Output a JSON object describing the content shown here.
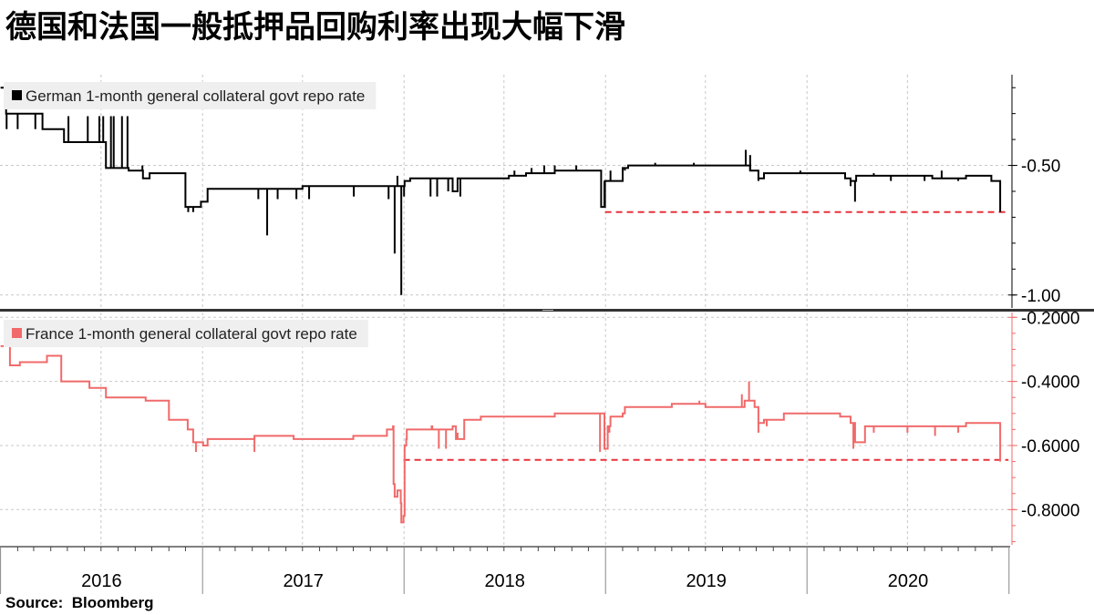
{
  "title": "德国和法国一般抵押品回购利率出现大幅下滑",
  "source": {
    "label": "Source:",
    "name": "Bloomberg"
  },
  "colors": {
    "german": "#000000",
    "france": "#f06a6a",
    "guide": "#e8323c",
    "grid": "#c8c8c8",
    "divider": "#333333"
  },
  "chart_data": [
    {
      "type": "line",
      "legend": "German 1-month general collateral govt repo rate",
      "y_ticks": [
        -0.5,
        -1.0
      ],
      "y_tick_labels": [
        "-0.50",
        "-1.00"
      ],
      "ylim": [
        -1.05,
        -0.15
      ],
      "grid": true,
      "legend_position": "top-left",
      "series": [
        {
          "name": "German 1-month general collateral govt repo rate",
          "x": [
            "2016-01-01",
            "2016-01-08",
            "2016-01-11",
            "2016-03-10",
            "2016-03-17",
            "2016-04-20",
            "2016-04-25",
            "2016-05-03",
            "2016-06-25",
            "2016-07-05",
            "2016-07-10",
            "2016-07-20",
            "2016-08-08",
            "2016-08-20",
            "2016-09-05",
            "2016-09-15",
            "2016-09-22",
            "2016-09-27",
            "2016-10-01",
            "2016-10-15",
            "2016-11-15",
            "2016-11-20",
            "2016-12-01",
            "2016-12-29",
            "2017-01-05",
            "2017-01-10",
            "2017-02-10",
            "2017-02-20",
            "2017-03-20",
            "2017-03-25",
            "2017-04-30",
            "2017-05-10",
            "2017-06-10",
            "2017-07-01",
            "2017-08-10",
            "2017-10-01",
            "2017-12-10",
            "2017-12-20",
            "2017-12-22",
            "2018-01-02",
            "2018-01-06",
            "2018-01-12",
            "2018-01-20",
            "2018-02-20",
            "2018-03-02",
            "2018-03-30",
            "2018-04-08",
            "2018-04-30",
            "2018-06-20",
            "2018-07-10",
            "2018-07-30",
            "2018-08-10",
            "2018-08-20",
            "2018-10-01",
            "2018-11-15",
            "2018-12-10",
            "2018-12-14",
            "2018-12-20",
            "2018-12-24",
            "2018-12-27",
            "2018-12-31",
            "2019-01-03",
            "2019-01-10",
            "2019-02-01",
            "2019-02-11",
            "2019-03-01",
            "2019-03-15",
            "2019-04-01",
            "2019-05-01",
            "2019-06-01",
            "2019-06-10",
            "2019-07-01",
            "2019-08-01",
            "2019-09-01",
            "2019-09-20",
            "2019-09-28",
            "2019-10-05",
            "2019-10-15",
            "2019-11-20",
            "2019-12-01",
            "2019-12-20",
            "2020-01-02",
            "2020-02-01",
            "2020-03-01",
            "2020-03-10",
            "2020-03-20",
            "2020-03-30",
            "2020-04-15",
            "2020-05-15",
            "2020-06-15",
            "2020-07-15",
            "2020-08-15",
            "2020-09-15",
            "2020-10-15",
            "2020-11-15",
            "2020-11-30",
            "2020-12-15",
            "2020-12-16"
          ],
          "y": [
            -0.2,
            -0.2,
            -0.3,
            -0.3,
            -0.36,
            -0.36,
            -0.41,
            -0.41,
            -0.41,
            -0.41,
            -0.51,
            -0.51,
            -0.51,
            -0.52,
            -0.52,
            -0.55,
            -0.55,
            -0.53,
            -0.53,
            -0.53,
            -0.53,
            -0.53,
            -0.66,
            -0.64,
            -0.64,
            -0.59,
            -0.59,
            -0.59,
            -0.59,
            -0.59,
            -0.59,
            -0.59,
            -0.59,
            -0.58,
            -0.58,
            -0.58,
            -0.58,
            -0.58,
            -0.58,
            -0.56,
            -0.56,
            -0.55,
            -0.55,
            -0.55,
            -0.55,
            -0.6,
            -0.55,
            -0.55,
            -0.55,
            -0.54,
            -0.54,
            -0.53,
            -0.53,
            -0.52,
            -0.52,
            -0.52,
            -0.52,
            -0.52,
            -0.66,
            -0.66,
            -0.56,
            -0.56,
            -0.56,
            -0.51,
            -0.5,
            -0.5,
            -0.5,
            -0.5,
            -0.5,
            -0.5,
            -0.5,
            -0.5,
            -0.5,
            -0.5,
            -0.52,
            -0.52,
            -0.55,
            -0.53,
            -0.53,
            -0.53,
            -0.53,
            -0.53,
            -0.53,
            -0.53,
            -0.55,
            -0.56,
            -0.54,
            -0.54,
            -0.54,
            -0.54,
            -0.54,
            -0.55,
            -0.55,
            -0.54,
            -0.54,
            -0.56,
            -0.56,
            -0.68
          ]
        }
      ],
      "spikes": [
        {
          "x": "2016-01-12",
          "y": -0.36
        },
        {
          "x": "2016-02-01",
          "y": -0.36
        },
        {
          "x": "2016-03-04",
          "y": -0.36
        },
        {
          "x": "2016-04-04",
          "y": -0.36
        },
        {
          "x": "2016-05-03",
          "y": -0.31
        },
        {
          "x": "2016-06-07",
          "y": -0.31
        },
        {
          "x": "2016-06-28",
          "y": -0.31
        },
        {
          "x": "2016-07-05",
          "y": -0.31
        },
        {
          "x": "2016-07-19",
          "y": -0.31
        },
        {
          "x": "2016-07-24",
          "y": -0.31
        },
        {
          "x": "2016-08-08",
          "y": -0.31
        },
        {
          "x": "2016-08-18",
          "y": -0.31
        },
        {
          "x": "2016-09-14",
          "y": -0.5
        },
        {
          "x": "2016-12-06",
          "y": -0.68
        },
        {
          "x": "2016-12-15",
          "y": -0.68
        },
        {
          "x": "2017-04-12",
          "y": -0.63
        },
        {
          "x": "2017-04-28",
          "y": -0.77
        },
        {
          "x": "2017-05-17",
          "y": -0.63
        },
        {
          "x": "2017-06-20",
          "y": -0.63
        },
        {
          "x": "2017-07-13",
          "y": -0.63
        },
        {
          "x": "2017-10-02",
          "y": -0.62
        },
        {
          "x": "2017-12-04",
          "y": -0.63
        },
        {
          "x": "2017-12-15",
          "y": -0.84
        },
        {
          "x": "2017-12-20",
          "y": -0.54
        },
        {
          "x": "2017-12-27",
          "y": -1.0
        },
        {
          "x": "2018-01-01",
          "y": -0.62
        },
        {
          "x": "2018-02-18",
          "y": -0.62
        },
        {
          "x": "2018-03-02",
          "y": -0.62
        },
        {
          "x": "2018-03-22",
          "y": -0.6
        },
        {
          "x": "2018-04-13",
          "y": -0.62
        },
        {
          "x": "2018-07-20",
          "y": -0.52
        },
        {
          "x": "2018-08-20",
          "y": -0.51
        },
        {
          "x": "2018-09-12",
          "y": -0.5
        },
        {
          "x": "2018-10-01",
          "y": -0.5
        },
        {
          "x": "2018-11-09",
          "y": -0.5
        },
        {
          "x": "2018-12-30",
          "y": -0.56
        },
        {
          "x": "2019-01-10",
          "y": -0.52
        },
        {
          "x": "2019-02-05",
          "y": -0.52
        },
        {
          "x": "2019-04-01",
          "y": -0.49
        },
        {
          "x": "2019-06-10",
          "y": -0.49
        },
        {
          "x": "2019-09-12",
          "y": -0.44
        },
        {
          "x": "2019-09-20",
          "y": -0.46
        },
        {
          "x": "2019-10-05",
          "y": -0.56
        },
        {
          "x": "2019-12-20",
          "y": -0.52
        },
        {
          "x": "2020-03-20",
          "y": -0.58
        },
        {
          "x": "2020-03-28",
          "y": -0.64
        },
        {
          "x": "2020-05-01",
          "y": -0.53
        },
        {
          "x": "2020-06-01",
          "y": -0.56
        },
        {
          "x": "2020-08-01",
          "y": -0.56
        },
        {
          "x": "2020-09-01",
          "y": -0.52
        },
        {
          "x": "2020-10-01",
          "y": -0.56
        }
      ],
      "reference_line": {
        "y": -0.68,
        "x_start": "2018-12-31",
        "x_end": "2020-12-31",
        "style": "dashed"
      }
    },
    {
      "type": "line",
      "legend": "France 1-month general collateral govt repo rate",
      "y_ticks": [
        -0.2,
        -0.4,
        -0.6,
        -0.8
      ],
      "y_tick_labels": [
        "-0.2000",
        "-0.4000",
        "-0.6000",
        "-0.8000"
      ],
      "ylim": [
        -0.91,
        -0.185
      ],
      "grid": true,
      "legend_position": "top-left",
      "series": [
        {
          "name": "France 1-month general collateral govt repo rate",
          "x": [
            "2016-01-01",
            "2016-01-15",
            "2016-01-18",
            "2016-02-01",
            "2016-02-05",
            "2016-03-10",
            "2016-03-25",
            "2016-04-10",
            "2016-04-20",
            "2016-06-01",
            "2016-06-10",
            "2016-07-01",
            "2016-07-10",
            "2016-08-20",
            "2016-09-20",
            "2016-10-01",
            "2016-10-31",
            "2016-11-01",
            "2016-11-20",
            "2016-12-05",
            "2016-12-15",
            "2016-12-25",
            "2017-01-02",
            "2017-01-10",
            "2017-02-15",
            "2017-03-20",
            "2017-04-05",
            "2017-04-05",
            "2017-05-20",
            "2017-06-01",
            "2017-06-15",
            "2017-08-01",
            "2017-09-30",
            "2017-10-01",
            "2017-11-01",
            "2017-12-01",
            "2017-12-12",
            "2017-12-13",
            "2017-12-15",
            "2017-12-20",
            "2017-12-26",
            "2017-12-27",
            "2017-12-31",
            "2018-01-02",
            "2018-01-05",
            "2018-01-06",
            "2018-02-20",
            "2018-02-21",
            "2018-03-02",
            "2018-03-30",
            "2018-04-05",
            "2018-04-20",
            "2018-05-20",
            "2018-07-01",
            "2018-08-01",
            "2018-09-01",
            "2018-10-01",
            "2018-11-01",
            "2018-11-30",
            "2018-12-01",
            "2018-12-20",
            "2018-12-30",
            "2019-01-03",
            "2019-01-05",
            "2019-01-10",
            "2019-02-01",
            "2019-02-05",
            "2019-03-01",
            "2019-04-01",
            "2019-05-01",
            "2019-06-01",
            "2019-07-01",
            "2019-08-01",
            "2019-09-01",
            "2019-09-10",
            "2019-09-28",
            "2019-10-05",
            "2019-10-15",
            "2019-11-20",
            "2019-12-01",
            "2019-12-20",
            "2020-01-02",
            "2020-02-01",
            "2020-03-01",
            "2020-03-20",
            "2020-03-28",
            "2020-04-15",
            "2020-06-15",
            "2020-08-15",
            "2020-10-15",
            "2020-11-30",
            "2020-12-15",
            "2020-12-16"
          ],
          "y": [
            -0.29,
            -0.29,
            -0.35,
            -0.35,
            -0.34,
            -0.34,
            -0.32,
            -0.32,
            -0.4,
            -0.4,
            -0.42,
            -0.42,
            -0.45,
            -0.45,
            -0.46,
            -0.46,
            -0.46,
            -0.52,
            -0.52,
            -0.55,
            -0.59,
            -0.59,
            -0.6,
            -0.58,
            -0.58,
            -0.58,
            -0.58,
            -0.57,
            -0.57,
            -0.57,
            -0.58,
            -0.58,
            -0.58,
            -0.57,
            -0.57,
            -0.55,
            -0.54,
            -0.72,
            -0.76,
            -0.74,
            -0.78,
            -0.84,
            -0.82,
            -0.6,
            -0.58,
            -0.55,
            -0.54,
            -0.55,
            -0.55,
            -0.54,
            -0.58,
            -0.52,
            -0.51,
            -0.51,
            -0.51,
            -0.51,
            -0.5,
            -0.5,
            -0.5,
            -0.5,
            -0.5,
            -0.61,
            -0.61,
            -0.54,
            -0.51,
            -0.5,
            -0.48,
            -0.48,
            -0.48,
            -0.47,
            -0.47,
            -0.48,
            -0.48,
            -0.48,
            -0.46,
            -0.48,
            -0.53,
            -0.52,
            -0.5,
            -0.5,
            -0.5,
            -0.5,
            -0.5,
            -0.51,
            -0.53,
            -0.59,
            -0.54,
            -0.54,
            -0.54,
            -0.53,
            -0.53,
            -0.53,
            -0.65
          ]
        }
      ],
      "spikes": [
        {
          "x": "2016-12-20",
          "y": -0.62
        },
        {
          "x": "2017-04-05",
          "y": -0.62
        },
        {
          "x": "2018-03-05",
          "y": -0.61
        },
        {
          "x": "2018-03-18",
          "y": -0.61
        },
        {
          "x": "2018-04-08",
          "y": -0.56
        },
        {
          "x": "2018-12-22",
          "y": -0.62
        },
        {
          "x": "2019-01-08",
          "y": -0.56
        },
        {
          "x": "2019-06-20",
          "y": -0.46
        },
        {
          "x": "2019-09-05",
          "y": -0.44
        },
        {
          "x": "2019-09-18",
          "y": -0.4
        },
        {
          "x": "2019-10-05",
          "y": -0.56
        },
        {
          "x": "2019-10-20",
          "y": -0.54
        },
        {
          "x": "2020-03-25",
          "y": -0.61
        },
        {
          "x": "2020-05-01",
          "y": -0.56
        },
        {
          "x": "2020-07-01",
          "y": -0.56
        },
        {
          "x": "2020-08-20",
          "y": -0.57
        },
        {
          "x": "2020-10-01",
          "y": -0.56
        }
      ],
      "reference_line": {
        "y": -0.645,
        "x_start": "2017-12-31",
        "x_end": "2020-12-31",
        "style": "dashed"
      }
    }
  ],
  "x_axis": {
    "range": [
      "2015-12-31",
      "2021-01-03"
    ],
    "year_labels": [
      "2016",
      "2017",
      "2018",
      "2019",
      "2020"
    ]
  }
}
